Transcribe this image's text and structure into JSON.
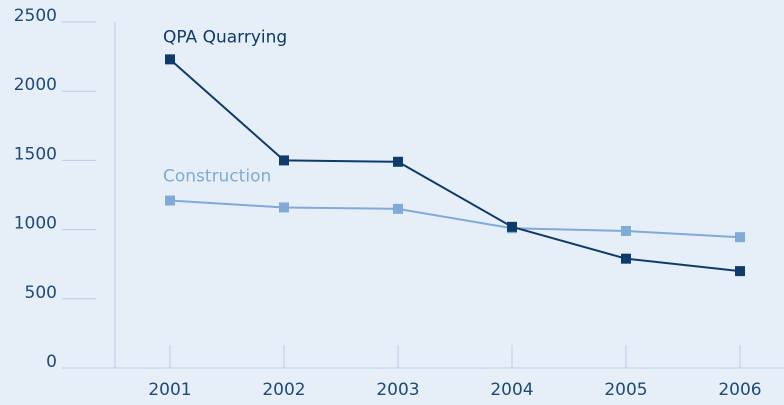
{
  "chart_data": {
    "type": "line",
    "categories": [
      "2001",
      "2002",
      "2003",
      "2004",
      "2005",
      "2006"
    ],
    "series": [
      {
        "name": "QPA Quarrying",
        "color": "#0e3a6c",
        "values": [
          2230,
          1500,
          1490,
          1020,
          790,
          700
        ]
      },
      {
        "name": "Construction",
        "color": "#80aad8",
        "values": [
          1210,
          1160,
          1150,
          1010,
          990,
          945
        ]
      }
    ],
    "ylim": [
      0,
      2500
    ],
    "yticks": [
      0,
      500,
      1000,
      1500,
      2000,
      2500
    ]
  }
}
